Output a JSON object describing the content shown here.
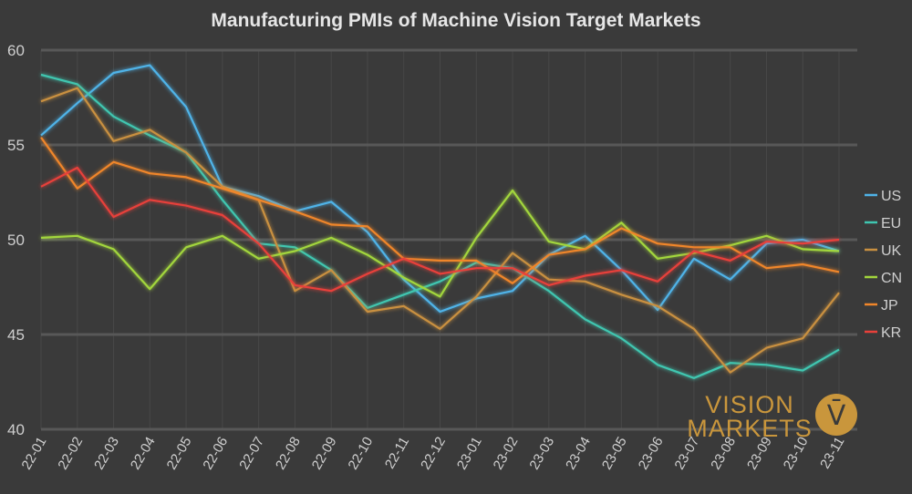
{
  "chart_data": {
    "type": "line",
    "title": "Manufacturing PMIs of Machine Vision Target Markets",
    "xlabel": "",
    "ylabel": "",
    "ylim": [
      40,
      60
    ],
    "yticks": [
      "40",
      "45",
      "50",
      "55",
      "60"
    ],
    "categories": [
      "22-01",
      "22-02",
      "22-03",
      "22-04",
      "22-05",
      "22-06",
      "22-07",
      "22-08",
      "22-09",
      "22-10",
      "22-11",
      "22-12",
      "23-01",
      "23-02",
      "23-03",
      "23-04",
      "23-05",
      "23-06",
      "23-07",
      "23-08",
      "23-09",
      "23-10",
      "23-11"
    ],
    "legend_position": "right",
    "series": [
      {
        "name": "US",
        "color": "#4fb3e8",
        "values": [
          55.5,
          57.2,
          58.8,
          59.2,
          57.0,
          52.8,
          52.3,
          51.5,
          52.0,
          50.4,
          47.9,
          46.2,
          46.9,
          47.3,
          49.2,
          50.2,
          48.4,
          46.3,
          49.0,
          47.9,
          49.8,
          50.0,
          49.4
        ]
      },
      {
        "name": "EU",
        "color": "#3fc6b0",
        "values": [
          58.7,
          58.2,
          56.5,
          55.5,
          54.6,
          52.1,
          49.8,
          49.6,
          48.4,
          46.4,
          47.1,
          47.8,
          48.8,
          48.5,
          47.3,
          45.8,
          44.8,
          43.4,
          42.7,
          43.5,
          43.4,
          43.1,
          44.2
        ]
      },
      {
        "name": "UK",
        "color": "#c99040",
        "values": [
          57.3,
          58.0,
          55.2,
          55.8,
          54.6,
          52.8,
          52.1,
          47.3,
          48.4,
          46.2,
          46.5,
          45.3,
          47.0,
          49.3,
          47.9,
          47.8,
          47.1,
          46.5,
          45.3,
          43.0,
          44.3,
          44.8,
          47.2
        ]
      },
      {
        "name": "CN",
        "color": "#a2d63c",
        "values": [
          50.1,
          50.2,
          49.5,
          47.4,
          49.6,
          50.2,
          49.0,
          49.4,
          50.1,
          49.2,
          48.0,
          47.0,
          50.1,
          52.6,
          49.9,
          49.5,
          50.9,
          49.0,
          49.3,
          49.7,
          50.2,
          49.5,
          49.4
        ]
      },
      {
        "name": "JP",
        "color": "#f0862a",
        "values": [
          55.4,
          52.7,
          54.1,
          53.5,
          53.3,
          52.7,
          52.1,
          51.5,
          50.8,
          50.7,
          49.0,
          48.9,
          48.9,
          47.7,
          49.2,
          49.5,
          50.6,
          49.8,
          49.6,
          49.6,
          48.5,
          48.7,
          48.3
        ]
      },
      {
        "name": "KR",
        "color": "#e8403a",
        "values": [
          52.8,
          53.8,
          51.2,
          52.1,
          51.8,
          51.3,
          49.8,
          47.6,
          47.3,
          48.2,
          49.0,
          48.2,
          48.5,
          48.5,
          47.6,
          48.1,
          48.4,
          47.8,
          49.4,
          48.9,
          49.9,
          49.8,
          50.0
        ]
      }
    ]
  },
  "logo": {
    "line1": "VISION",
    "line2": "MARKETS",
    "symbol": "V̄"
  }
}
